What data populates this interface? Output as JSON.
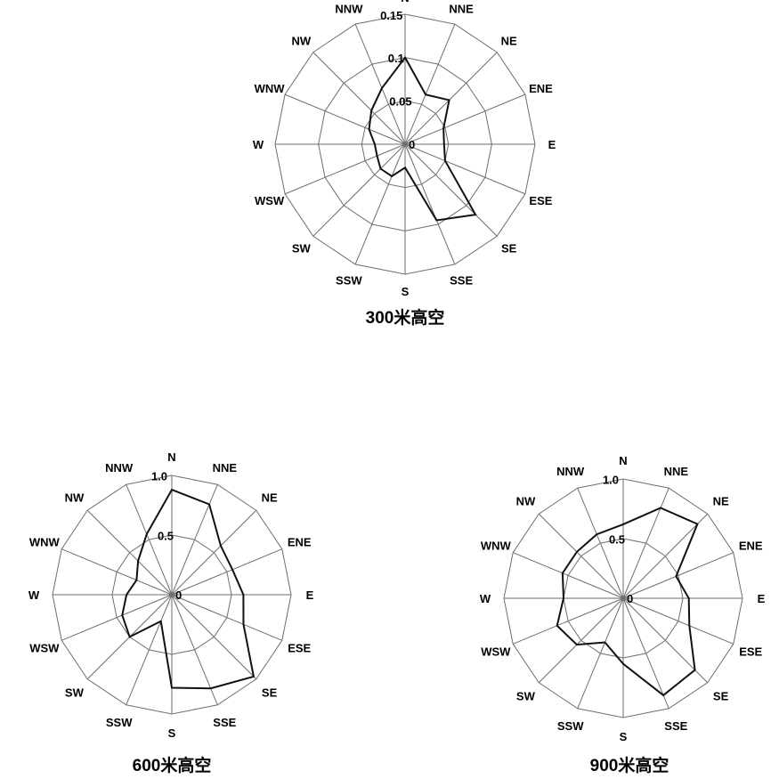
{
  "chart_data": [
    {
      "type": "radar",
      "title": "300米高空",
      "directions": [
        "N",
        "NNE",
        "NE",
        "ENE",
        "E",
        "ESE",
        "SE",
        "SSE",
        "S",
        "SSW",
        "SW",
        "WSW",
        "W",
        "WNW",
        "NW",
        "NNW"
      ],
      "rlim": [
        0,
        0.15
      ],
      "radial_ticks": [
        "0",
        "0.05",
        "0.1",
        "0.15"
      ],
      "values": [
        0.1,
        0.062,
        0.072,
        0.048,
        0.045,
        0.05,
        0.115,
        0.095,
        0.027,
        0.04,
        0.04,
        0.035,
        0.035,
        0.045,
        0.055,
        0.07
      ],
      "grid": true
    },
    {
      "type": "radar",
      "title": "600米高空",
      "directions": [
        "N",
        "NNE",
        "NE",
        "ENE",
        "E",
        "ESE",
        "SE",
        "SSE",
        "S",
        "SSW",
        "SW",
        "WSW",
        "W",
        "WNW",
        "NW",
        "NNW"
      ],
      "rlim": [
        0,
        1.0
      ],
      "radial_ticks": [
        "0",
        "0.5",
        "1.0"
      ],
      "values": [
        0.88,
        0.82,
        0.58,
        0.55,
        0.6,
        0.65,
        0.97,
        0.85,
        0.78,
        0.24,
        0.5,
        0.45,
        0.38,
        0.32,
        0.4,
        0.55
      ],
      "grid": true
    },
    {
      "type": "radar",
      "title": "900米高空",
      "directions": [
        "N",
        "NNE",
        "NE",
        "ENE",
        "E",
        "ESE",
        "SE",
        "SSE",
        "S",
        "SSW",
        "SW",
        "WSW",
        "W",
        "WNW",
        "NW",
        "NNW"
      ],
      "rlim": [
        0,
        1.0
      ],
      "radial_ticks": [
        "0",
        "0.5",
        "1.0"
      ],
      "values": [
        0.62,
        0.82,
        0.88,
        0.48,
        0.55,
        0.6,
        0.85,
        0.88,
        0.55,
        0.4,
        0.55,
        0.6,
        0.5,
        0.55,
        0.55,
        0.58
      ],
      "grid": true
    }
  ]
}
